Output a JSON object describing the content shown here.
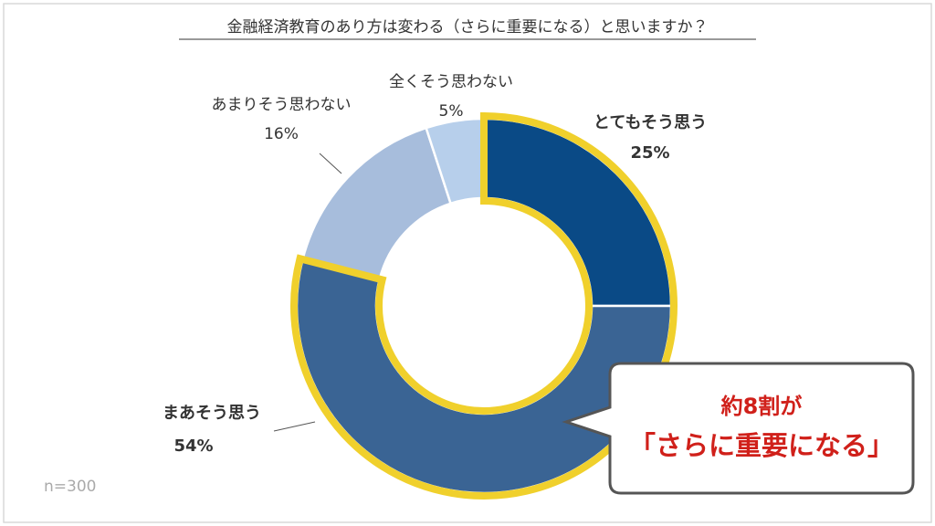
{
  "chart_data": {
    "type": "donut",
    "title": "金融経済教育のあり方は変わる（さらに重要になる）と思いますか？",
    "categories": [
      "とてもそう思う",
      "まあそう思う",
      "あまりそう思わない",
      "全くそう思わない"
    ],
    "values": [
      25,
      54,
      16,
      5
    ],
    "value_labels": [
      "25%",
      "54%",
      "16%",
      "5%"
    ],
    "colors": [
      "#0a4a86",
      "#3a6494",
      "#a7bddc",
      "#b7cfeb"
    ],
    "note": "n=300",
    "callout": [
      "約8割が",
      "「さらに重要になる」"
    ]
  }
}
